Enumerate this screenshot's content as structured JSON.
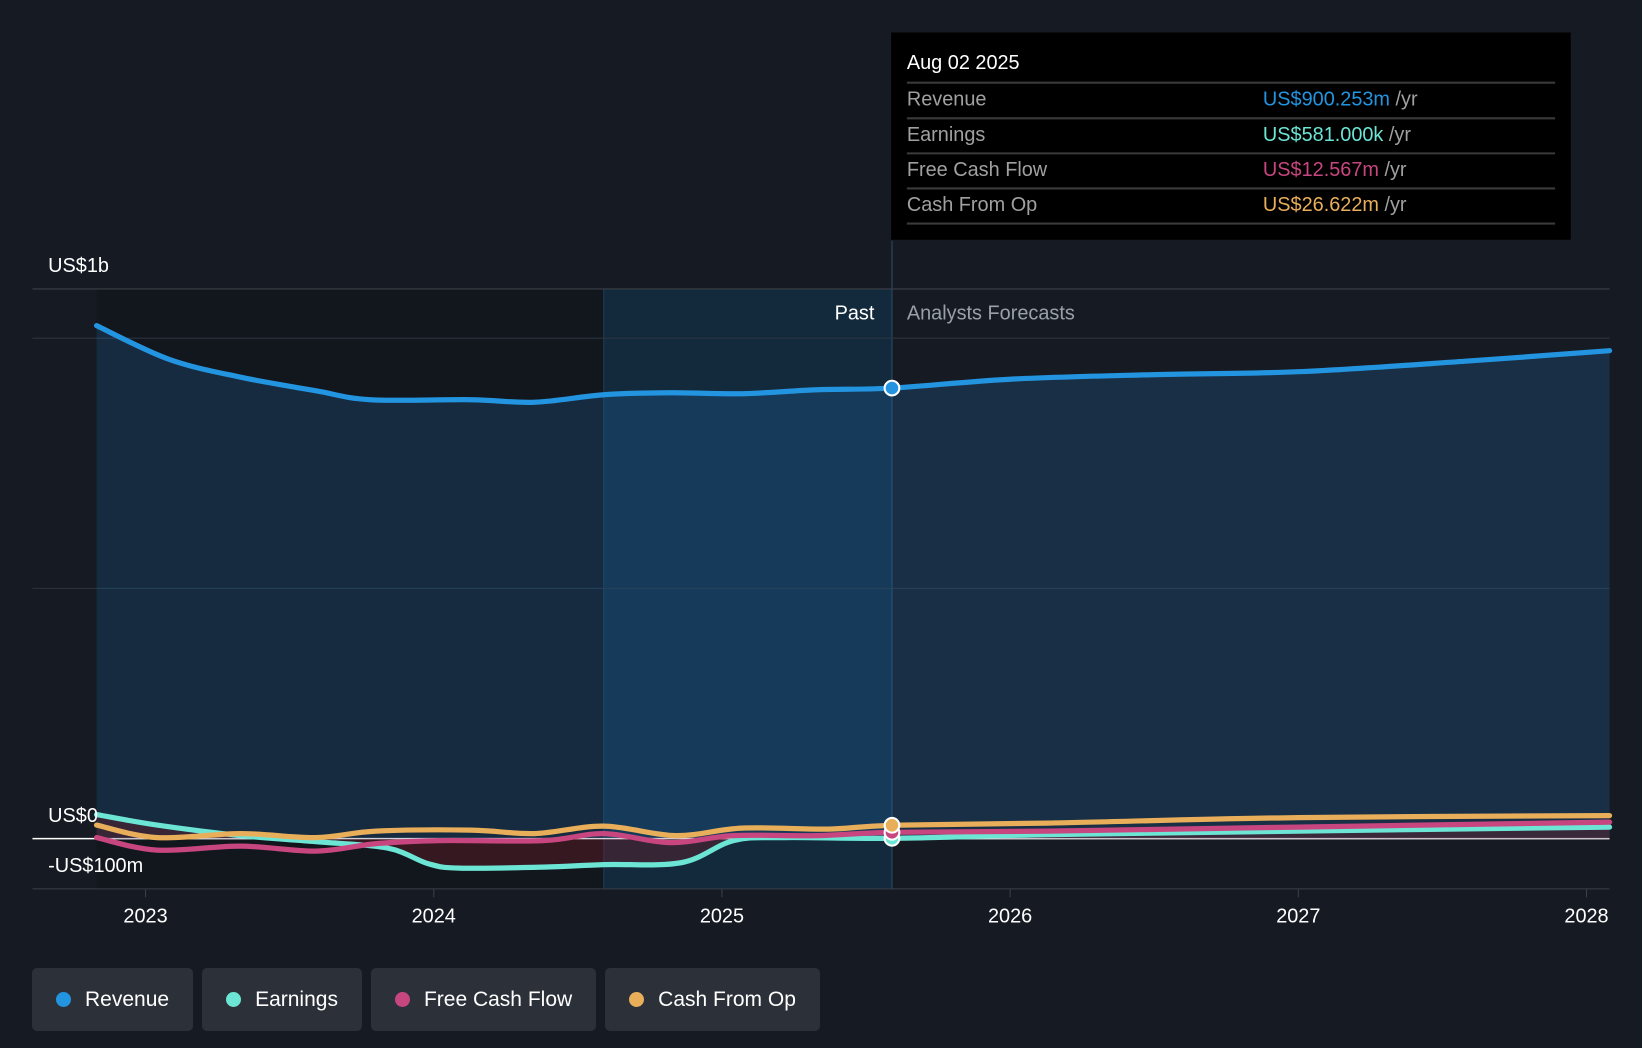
{
  "chart_data": {
    "type": "line",
    "title": "",
    "xlabel": "",
    "ylabel": "",
    "y_tick_labels": [
      "US$1b",
      "US$0",
      "-US$100m"
    ],
    "x_ticks": [
      2023,
      2024,
      2025,
      2026,
      2027,
      2028
    ],
    "ylim_musd": [
      -100,
      1000
    ],
    "past_label": "Past",
    "forecast_label": "Analysts Forecasts",
    "past_end": 2025.59,
    "highlight_start": 2024.59,
    "series": [
      {
        "name": "Revenue",
        "color": "#2394df",
        "x": [
          2022.83,
          2023.08,
          2023.33,
          2023.59,
          2023.78,
          2024.13,
          2024.35,
          2024.59,
          2024.82,
          2025.07,
          2025.33,
          2025.59,
          2026.0,
          2026.49,
          2027.0,
          2027.58,
          2028.08
        ],
        "y": [
          1025,
          958,
          922,
          895,
          877,
          877,
          872,
          887,
          891,
          889,
          897,
          900.253,
          918,
          927,
          933,
          954,
          975
        ]
      },
      {
        "name": "Earnings",
        "color": "#6ce5d4",
        "x": [
          2022.83,
          2023.04,
          2023.33,
          2023.59,
          2023.84,
          2023.98,
          2024.09,
          2024.38,
          2024.59,
          2024.86,
          2025.04,
          2025.22,
          2025.59,
          2026.13,
          2027.0,
          2028.08
        ],
        "y": [
          48,
          27,
          6,
          -6,
          -19,
          -50,
          -59,
          -57,
          -52,
          -48,
          -4,
          2,
          0.581,
          8,
          15,
          23
        ]
      },
      {
        "name": "Free Cash Flow",
        "color": "#c8467f",
        "x": [
          2022.83,
          2023.04,
          2023.33,
          2023.59,
          2023.8,
          2024.02,
          2024.38,
          2024.59,
          2024.82,
          2025.04,
          2025.33,
          2025.59,
          2026.13,
          2027.0,
          2028.08
        ],
        "y": [
          2,
          -23,
          -15,
          -25,
          -10,
          -4,
          -4,
          10,
          -8,
          6,
          6,
          12.567,
          15,
          23,
          33
        ]
      },
      {
        "name": "Cash From Op",
        "color": "#e8ae5a",
        "x": [
          2022.83,
          2023.04,
          2023.33,
          2023.59,
          2023.8,
          2024.13,
          2024.35,
          2024.59,
          2024.84,
          2025.07,
          2025.37,
          2025.59,
          2026.13,
          2027.0,
          2028.08
        ],
        "y": [
          27,
          2,
          10,
          2,
          15,
          17,
          10,
          25,
          6,
          21,
          19,
          26.622,
          31,
          42,
          46
        ]
      }
    ]
  },
  "tooltip": {
    "date": "Aug 02 2025",
    "rows": [
      {
        "label": "Revenue",
        "value": "US$900.253m",
        "unit": "/yr",
        "color": "#2394df"
      },
      {
        "label": "Earnings",
        "value": "US$581.000k",
        "unit": "/yr",
        "color": "#6ce5d4"
      },
      {
        "label": "Free Cash Flow",
        "value": "US$12.567m",
        "unit": "/yr",
        "color": "#c8467f"
      },
      {
        "label": "Cash From Op",
        "value": "US$26.622m",
        "unit": "/yr",
        "color": "#e8ae5a"
      }
    ]
  },
  "legend": [
    {
      "label": "Revenue",
      "color": "#2394df"
    },
    {
      "label": "Earnings",
      "color": "#6ce5d4"
    },
    {
      "label": "Free Cash Flow",
      "color": "#c8467f"
    },
    {
      "label": "Cash From Op",
      "color": "#e8ae5a"
    }
  ]
}
